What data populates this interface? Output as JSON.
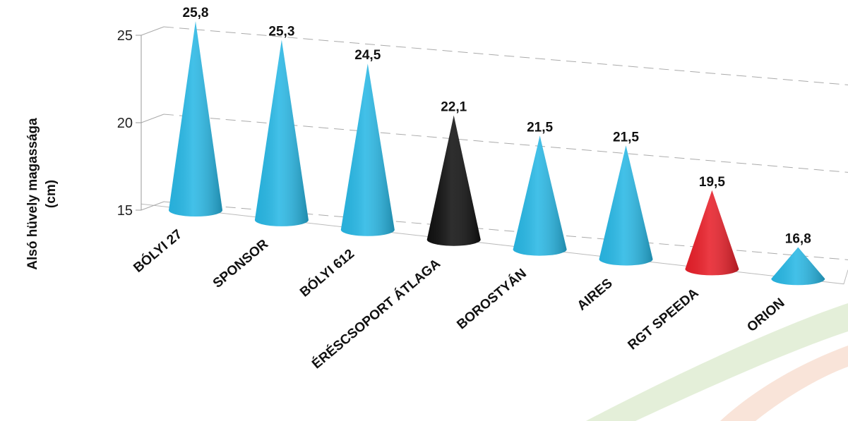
{
  "chart_data": {
    "type": "cone",
    "y_label": [
      "Alsó hüvely magassága",
      "(cm)"
    ],
    "categories": [
      "BÓLYI 27",
      "SPONSOR",
      "BÓLYI 612",
      "ÉRÉSCSOPORT ÁTLAGA",
      "BOROSTYÁN",
      "AIRES",
      "RGT SPEEDA",
      "ORION"
    ],
    "values": [
      25.8,
      25.3,
      24.5,
      22.1,
      21.5,
      21.5,
      19.5,
      16.8
    ],
    "value_labels": [
      "25,8",
      "25,3",
      "24,5",
      "22,1",
      "21,5",
      "21,5",
      "19,5",
      "16,8"
    ],
    "colors": [
      "#29b8e5",
      "#29b8e5",
      "#29b8e5",
      "#111111",
      "#29b8e5",
      "#29b8e5",
      "#e8202a",
      "#29b8e5"
    ],
    "ylim": [
      15,
      25
    ],
    "yticks": [
      15,
      20,
      25
    ],
    "grid": true
  }
}
